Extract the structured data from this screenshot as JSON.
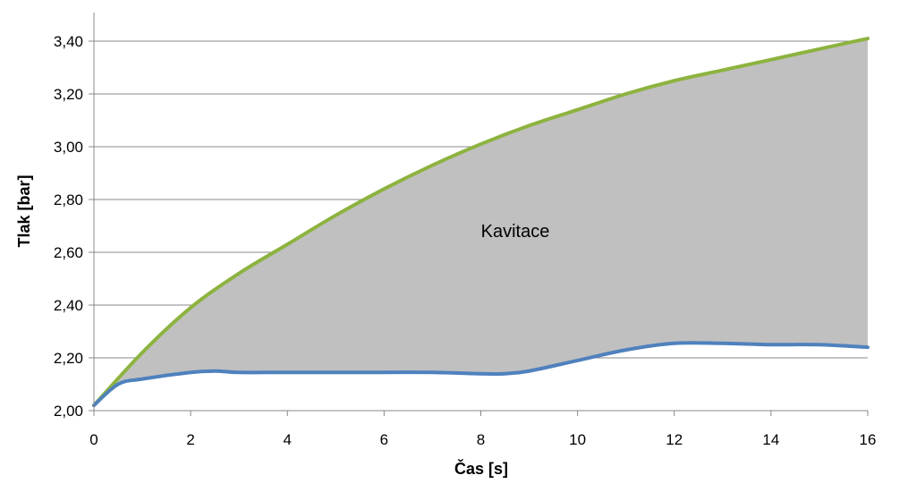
{
  "chart_data": {
    "type": "area",
    "xlabel": "Čas [s]",
    "ylabel": "Tlak [bar]",
    "xlim": [
      0,
      16
    ],
    "ylim": [
      2.0,
      3.4
    ],
    "x_ticks": [
      "0",
      "2",
      "4",
      "6",
      "8",
      "10",
      "12",
      "14",
      "16"
    ],
    "y_ticks": [
      "2,00",
      "2,20",
      "2,40",
      "2,60",
      "2,80",
      "3,00",
      "3,20",
      "3,40"
    ],
    "grid": "horizontal",
    "annotation": "Kavitace",
    "colors": {
      "upper": "#8db33f",
      "lower": "#4f81bd",
      "fill": "#c0c0c0",
      "grid": "#888888"
    },
    "series": [
      {
        "x": [
          0,
          1,
          2,
          3,
          4,
          5,
          6,
          7,
          8,
          9,
          10,
          11,
          12,
          13,
          14,
          15,
          16
        ],
        "y": [
          2.02,
          2.22,
          2.39,
          2.52,
          2.63,
          2.74,
          2.84,
          2.93,
          3.01,
          3.08,
          3.14,
          3.2,
          3.25,
          3.29,
          3.33,
          3.37,
          3.41
        ]
      },
      {
        "x": [
          0,
          0.5,
          1,
          2,
          2.5,
          3,
          4,
          5,
          6,
          7,
          8,
          8.5,
          9,
          10,
          11,
          12,
          13,
          14,
          15,
          16
        ],
        "y": [
          2.02,
          2.1,
          2.12,
          2.145,
          2.15,
          2.145,
          2.145,
          2.145,
          2.145,
          2.145,
          2.14,
          2.14,
          2.15,
          2.19,
          2.23,
          2.255,
          2.255,
          2.25,
          2.25,
          2.24
        ]
      }
    ]
  }
}
